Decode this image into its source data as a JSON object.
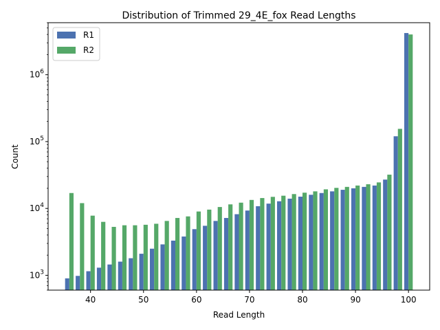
{
  "chart_data": {
    "type": "bar",
    "title": "Distribution of Trimmed 29_4E_fox Read Lengths",
    "xlabel": "Read Length",
    "ylabel": "Count",
    "yscale": "log",
    "xlim": [
      32,
      104
    ],
    "ylim": [
      600,
      6000000
    ],
    "x_ticks": [
      40,
      50,
      60,
      70,
      80,
      90,
      100
    ],
    "y_ticks": [
      {
        "value": 1000,
        "base": "10",
        "exp": "3"
      },
      {
        "value": 10000,
        "base": "10",
        "exp": "4"
      },
      {
        "value": 100000,
        "base": "10",
        "exp": "5"
      },
      {
        "value": 1000000,
        "base": "10",
        "exp": "6"
      }
    ],
    "legend_position": "upper left",
    "x": [
      36,
      38,
      40,
      42,
      44,
      46,
      48,
      50,
      52,
      54,
      56,
      58,
      60,
      62,
      64,
      66,
      68,
      70,
      72,
      74,
      76,
      78,
      80,
      82,
      84,
      86,
      88,
      90,
      92,
      94,
      96,
      98,
      100
    ],
    "series": [
      {
        "name": "R1",
        "color": "#4c72b0",
        "values": [
          900,
          980,
          1150,
          1300,
          1450,
          1600,
          1800,
          2100,
          2500,
          2900,
          3300,
          3800,
          4900,
          5500,
          6500,
          7200,
          8200,
          9300,
          10800,
          11800,
          12800,
          14000,
          15000,
          16000,
          17000,
          18000,
          19000,
          20000,
          21000,
          22000,
          27000,
          120000,
          4200000
        ]
      },
      {
        "name": "R2",
        "color": "#55a868",
        "values": [
          17000,
          12000,
          7800,
          6300,
          5300,
          5600,
          5600,
          5700,
          5900,
          6500,
          7200,
          7600,
          9000,
          9600,
          10500,
          11500,
          12200,
          13400,
          14300,
          14900,
          15500,
          16400,
          17200,
          18000,
          19300,
          20300,
          21000,
          22000,
          23000,
          24500,
          32000,
          155000,
          4000000
        ]
      }
    ]
  }
}
